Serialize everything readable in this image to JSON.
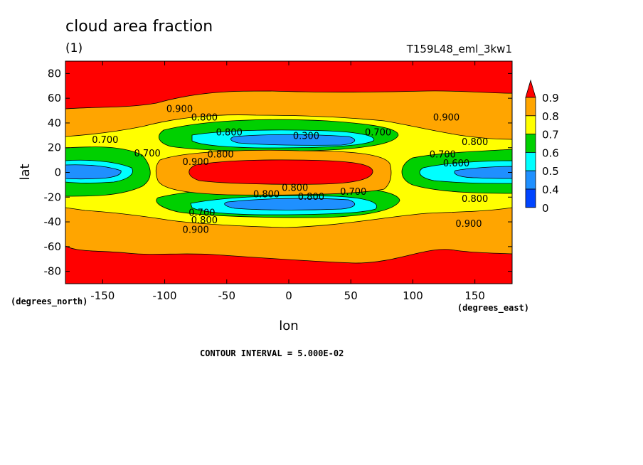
{
  "chart_data": {
    "type": "heatmap",
    "title": "cloud area fraction",
    "subtitle": "(1)",
    "run_label": "T159L48_eml_3kw1",
    "xlabel": "lon",
    "ylabel": "lat",
    "x_units": "(degrees_east)",
    "y_units": "(degrees_north)",
    "xlim": [
      -180,
      180
    ],
    "ylim": [
      -90,
      90
    ],
    "x_ticks": [
      -150,
      -100,
      -50,
      0,
      50,
      100,
      150
    ],
    "y_ticks": [
      80,
      60,
      40,
      20,
      0,
      -20,
      -40,
      -60,
      -80
    ],
    "contour_interval_note": "CONTOUR INTERVAL = 5.000E-02",
    "colorbar": {
      "levels": [
        "0.9",
        "0.8",
        "0.7",
        "0.6",
        "0.5",
        "0.4",
        "0"
      ],
      "colors": [
        "#ff0000",
        "#ffa500",
        "#ffff00",
        "#00d000",
        "#00ffff",
        "#1f90ff",
        "#0044ff"
      ]
    },
    "contour_labels": [
      {
        "text": "0.900",
        "lon": -88,
        "lat": 49
      },
      {
        "text": "0.800",
        "lon": -68,
        "lat": 42
      },
      {
        "text": "0.800",
        "lon": -48,
        "lat": 30
      },
      {
        "text": "0.700",
        "lon": -148,
        "lat": 24
      },
      {
        "text": "0.700",
        "lon": -114,
        "lat": 13
      },
      {
        "text": "0.800",
        "lon": -55,
        "lat": 12
      },
      {
        "text": "0.900",
        "lon": -75,
        "lat": 6
      },
      {
        "text": "0.300",
        "lon": 14,
        "lat": 27
      },
      {
        "text": "0.700",
        "lon": 72,
        "lat": 30
      },
      {
        "text": "0.900",
        "lon": 127,
        "lat": 42
      },
      {
        "text": "0.800",
        "lon": 150,
        "lat": 22
      },
      {
        "text": "0.700",
        "lon": 124,
        "lat": 12
      },
      {
        "text": "0.600",
        "lon": 135,
        "lat": 5
      },
      {
        "text": "0.800",
        "lon": 5,
        "lat": -15
      },
      {
        "text": "0.800",
        "lon": -18,
        "lat": -20
      },
      {
        "text": "0.800",
        "lon": 18,
        "lat": -22
      },
      {
        "text": "0.700",
        "lon": 52,
        "lat": -18
      },
      {
        "text": "0.800",
        "lon": 150,
        "lat": -24
      },
      {
        "text": "0.700",
        "lon": -70,
        "lat": -35
      },
      {
        "text": "0.800",
        "lon": -68,
        "lat": -41
      },
      {
        "text": "0.900",
        "lon": -75,
        "lat": -49
      },
      {
        "text": "0.900",
        "lon": 145,
        "lat": -44
      }
    ],
    "grid": false,
    "legend_placement": "right"
  }
}
